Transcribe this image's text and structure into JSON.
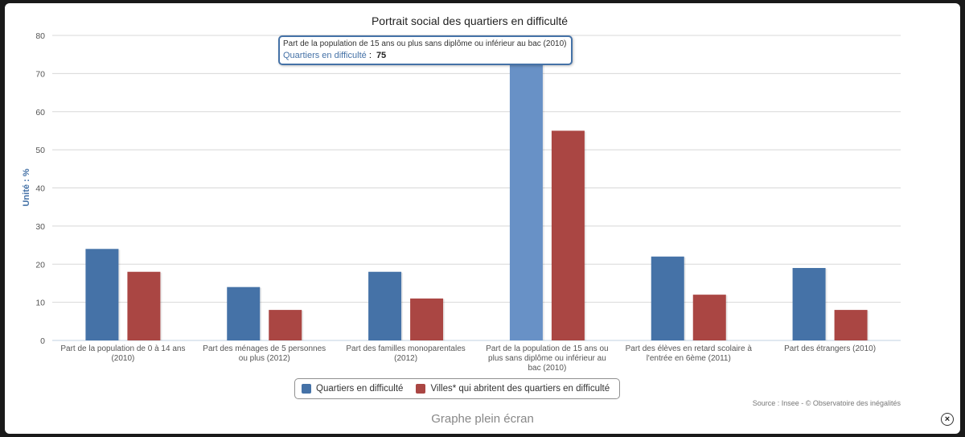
{
  "chart_data": {
    "type": "bar",
    "title": "Portrait social des quartiers en difficulté",
    "ylabel": "Unité : %",
    "ylim": [
      0,
      80
    ],
    "yticks": [
      0,
      10,
      20,
      30,
      40,
      50,
      60,
      70,
      80
    ],
    "grid": true,
    "legend_position": "bottom-center",
    "categories": [
      [
        "Part de la population de 0 à 14 ans",
        "(2010)"
      ],
      [
        "Part des ménages de 5 personnes",
        "ou plus (2012)"
      ],
      [
        "Part des familles monoparentales",
        "(2012)"
      ],
      [
        "Part de la population de 15 ans ou",
        "plus sans diplôme ou inférieur au",
        "bac (2010)"
      ],
      [
        "Part des élèves en retard scolaire à",
        "l'entrée en 6ème (2011)"
      ],
      [
        "Part des étrangers (2010)"
      ]
    ],
    "series": [
      {
        "name": "Quartiers en difficulté",
        "color": "#4572a7",
        "values": [
          24,
          14,
          18,
          75,
          22,
          19
        ]
      },
      {
        "name": "Villes* qui abritent des quartiers en difficulté",
        "color": "#aa4643",
        "values": [
          18,
          8,
          11,
          55,
          12,
          8
        ]
      }
    ],
    "highlight": {
      "series": 0,
      "category": 3,
      "color": "#6891c6"
    }
  },
  "tooltip": {
    "title": "Part de la population de 15 ans ou plus sans diplôme ou inférieur au bac (2010)",
    "series": "Quartiers en difficulté",
    "separator": ":",
    "value": "75"
  },
  "legend": {
    "items": [
      {
        "label": "Quartiers en difficulté",
        "color": "#4572a7"
      },
      {
        "label": "Villes* qui abritent des quartiers en difficulté",
        "color": "#aa4643"
      }
    ]
  },
  "source": "Source : Insee - © Observatoire des inégalités",
  "fullscreen_label": "Graphe plein écran",
  "close_label": "×"
}
